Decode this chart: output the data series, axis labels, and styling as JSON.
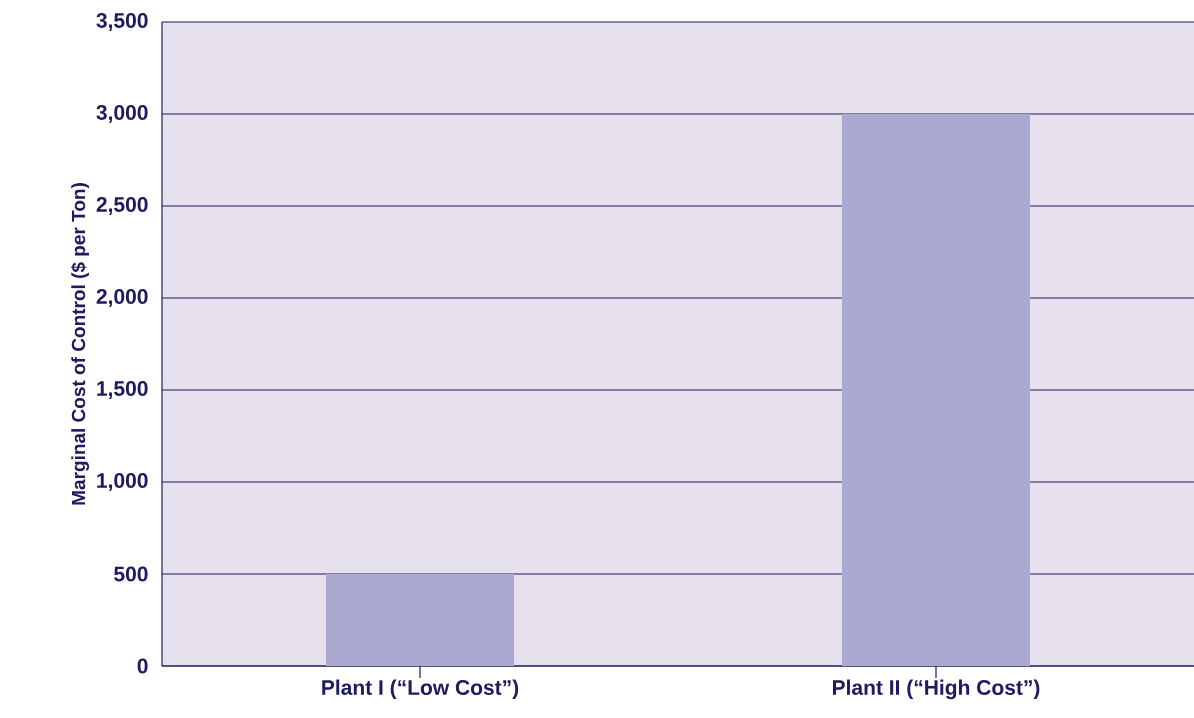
{
  "chart_data": {
    "type": "bar",
    "ylabel": "Marginal Cost of Control ($ per Ton)",
    "categories": [
      "Plant I (“Low Cost”)",
      "Plant II (“High Cost”)"
    ],
    "values": [
      500,
      3000
    ],
    "color": "#a9a9d1",
    "ylim": [
      0,
      3500
    ],
    "yticks": [
      {
        "value": 0,
        "label": "0"
      },
      {
        "value": 500,
        "label": "500"
      },
      {
        "value": 1000,
        "label": "1,000"
      },
      {
        "value": 1500,
        "label": "1,500"
      },
      {
        "value": 2000,
        "label": "2,000"
      },
      {
        "value": 2500,
        "label": "2,500"
      },
      {
        "value": 3000,
        "label": "3,000"
      },
      {
        "value": 3500,
        "label": "3,500"
      }
    ],
    "grid": "y"
  }
}
